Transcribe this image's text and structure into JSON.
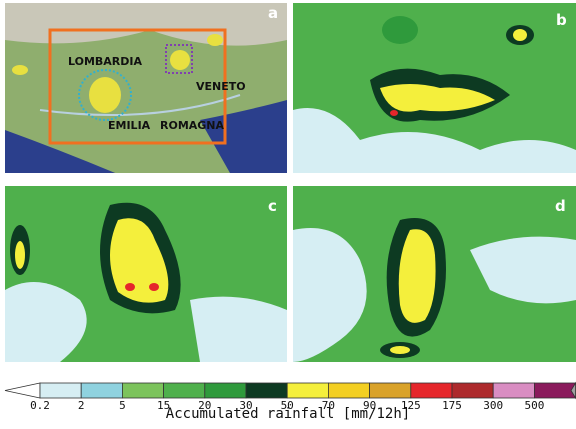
{
  "panels": [
    {
      "label": "a"
    },
    {
      "label": "b"
    },
    {
      "label": "c"
    },
    {
      "label": "d"
    }
  ],
  "map_labels": [
    "LOMBARDIA",
    "VENETO",
    "EMILIA",
    "ROMAGNA"
  ],
  "colorbar": {
    "ticks": [
      0.2,
      2,
      5,
      15,
      20,
      30,
      50,
      70,
      90,
      125,
      175,
      300,
      500
    ],
    "colors": [
      "#ffffff",
      "#d6eef3",
      "#8fd2df",
      "#7cc35c",
      "#4fb04c",
      "#2f9a3c",
      "#0d3a22",
      "#f4ef3c",
      "#f3cf22",
      "#d9a22a",
      "#e5262b",
      "#ad2a2c",
      "#d98dc2",
      "#8a1b5c",
      "#a0a0a0"
    ],
    "label": "Accumulated rainfall [mm/12h]"
  }
}
